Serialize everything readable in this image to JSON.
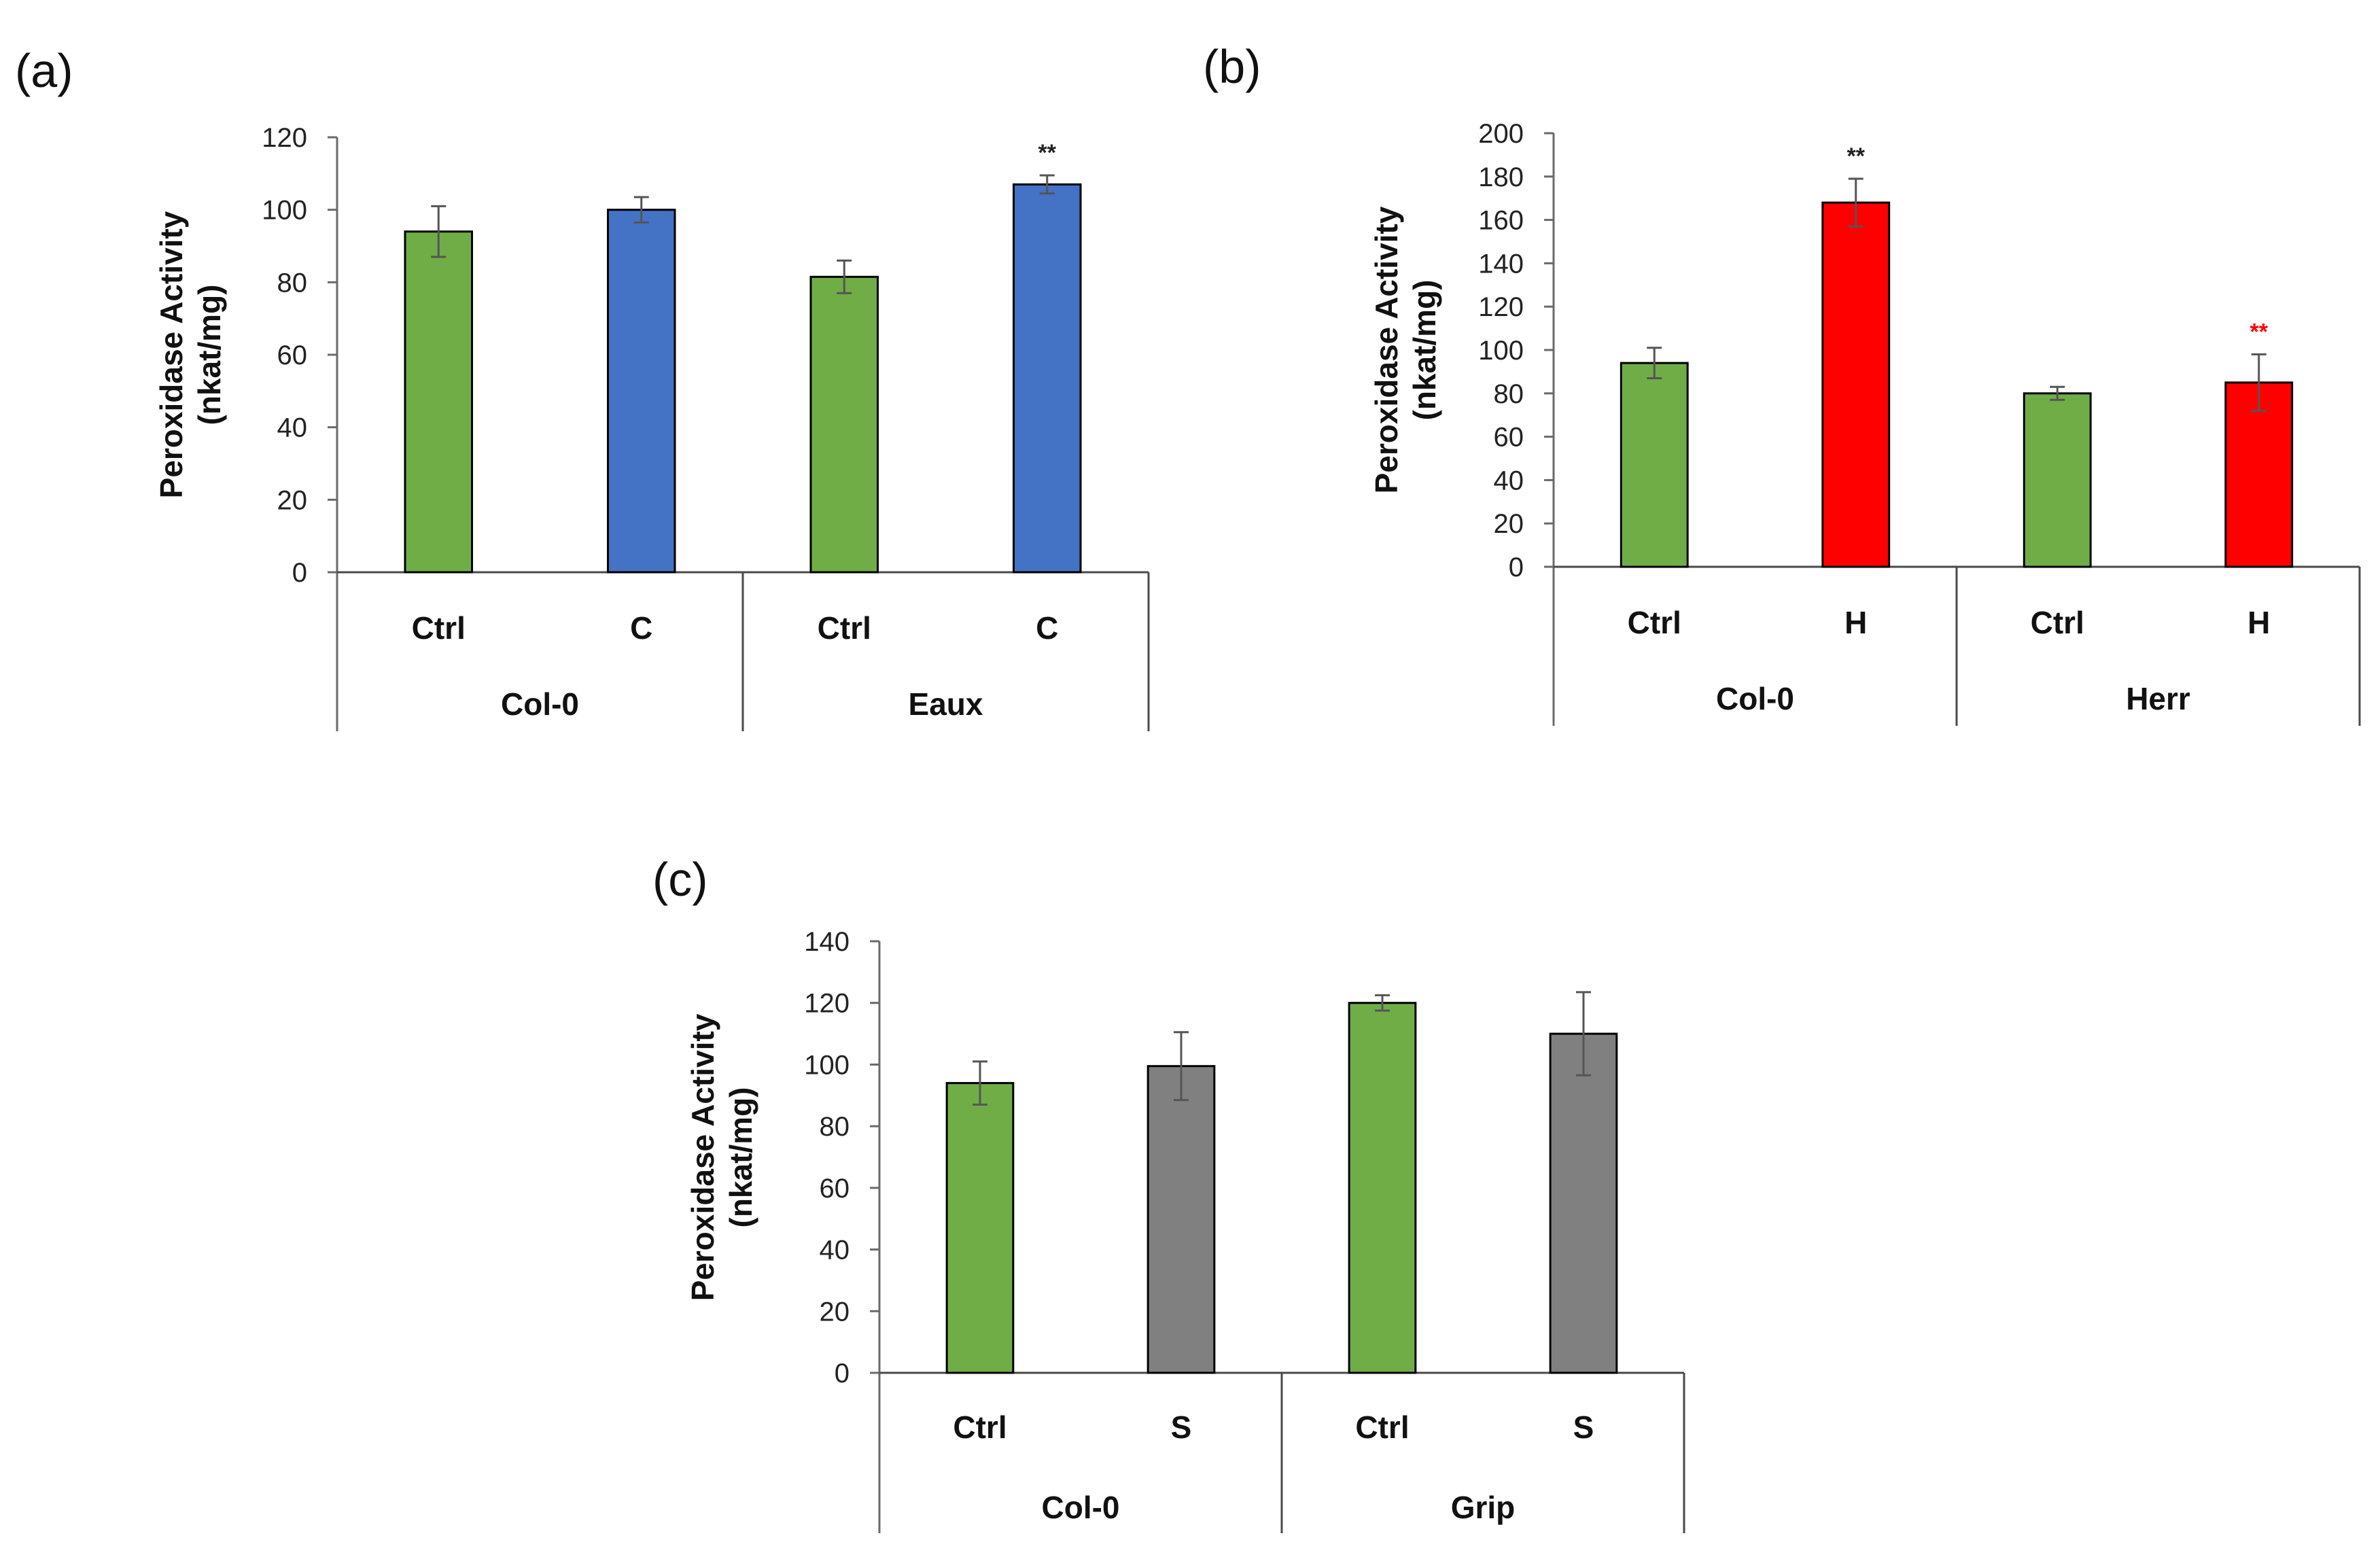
{
  "chart_data": [
    {
      "panel_label": "(a)",
      "type": "bar",
      "ylabel_line1": "Peroxidase Activity",
      "ylabel_line2": "(nkat/mg)",
      "ylim": [
        0,
        120
      ],
      "yticks": [
        0,
        20,
        40,
        60,
        80,
        100,
        120
      ],
      "groups": [
        "Col-0",
        "Eaux"
      ],
      "bars": [
        {
          "group": "Col-0",
          "category": "Ctrl",
          "value": 94,
          "error": 7,
          "color": "#70ad47",
          "annotation": ""
        },
        {
          "group": "Col-0",
          "category": "C",
          "value": 100,
          "error": 3.5,
          "color": "#4472c4",
          "annotation": ""
        },
        {
          "group": "Eaux",
          "category": "Ctrl",
          "value": 81.5,
          "error": 4.5,
          "color": "#70ad47",
          "annotation": ""
        },
        {
          "group": "Eaux",
          "category": "C",
          "value": 107,
          "error": 2.5,
          "color": "#4472c4",
          "annotation": "**",
          "annotation_color": "#222222"
        }
      ]
    },
    {
      "panel_label": "(b)",
      "type": "bar",
      "ylabel_line1": "Peroxidase Activity",
      "ylabel_line2": "(nkat/mg)",
      "ylim": [
        0,
        200
      ],
      "yticks": [
        0,
        20,
        40,
        60,
        80,
        100,
        120,
        140,
        160,
        180,
        200
      ],
      "groups": [
        "Col-0",
        "Herr"
      ],
      "bars": [
        {
          "group": "Col-0",
          "category": "Ctrl",
          "value": 94,
          "error": 7,
          "color": "#70ad47",
          "annotation": ""
        },
        {
          "group": "Col-0",
          "category": "H",
          "value": 168,
          "error": 11,
          "color": "#ff0000",
          "annotation": "**",
          "annotation_color": "#222222"
        },
        {
          "group": "Herr",
          "category": "Ctrl",
          "value": 80,
          "error": 3,
          "color": "#70ad47",
          "annotation": ""
        },
        {
          "group": "Herr",
          "category": "H",
          "value": 85,
          "error": 13,
          "color": "#ff0000",
          "annotation": "**",
          "annotation_color": "#ff0000"
        }
      ]
    },
    {
      "panel_label": "(c)",
      "type": "bar",
      "ylabel_line1": "Peroxidase Activity",
      "ylabel_line2": "(nkat/mg)",
      "ylim": [
        0,
        140
      ],
      "yticks": [
        0,
        20,
        40,
        60,
        80,
        100,
        120,
        140
      ],
      "groups": [
        "Col-0",
        "Grip"
      ],
      "bars": [
        {
          "group": "Col-0",
          "category": "Ctrl",
          "value": 94,
          "error": 7,
          "color": "#70ad47",
          "annotation": ""
        },
        {
          "group": "Col-0",
          "category": "S",
          "value": 99.5,
          "error": 11,
          "color": "#808080",
          "annotation": ""
        },
        {
          "group": "Grip",
          "category": "Ctrl",
          "value": 120,
          "error": 2.5,
          "color": "#70ad47",
          "annotation": ""
        },
        {
          "group": "Grip",
          "category": "S",
          "value": 110,
          "error": 13.5,
          "color": "#808080",
          "annotation": ""
        }
      ]
    }
  ]
}
